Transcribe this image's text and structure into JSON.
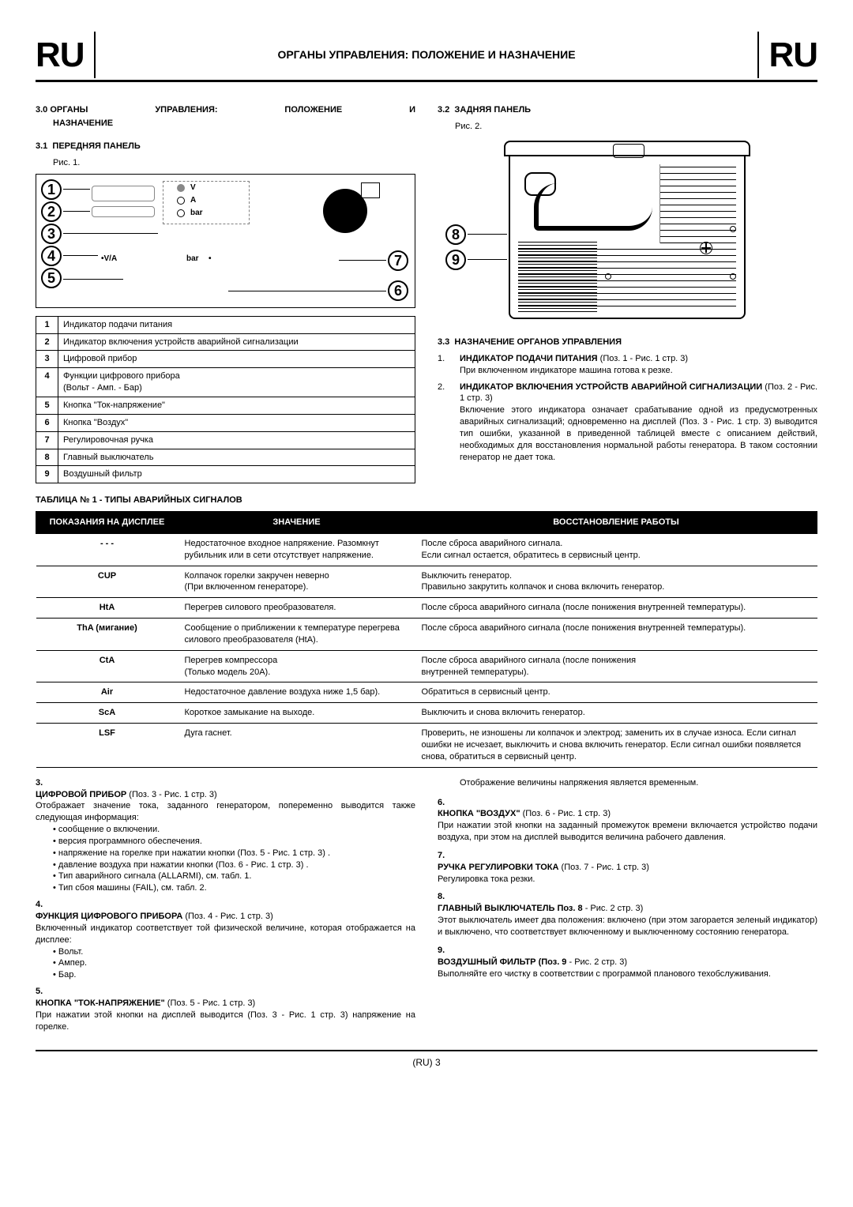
{
  "header": {
    "lang_left": "RU",
    "lang_right": "RU",
    "title": "ОРГАНЫ УПРАВЛЕНИЯ: ПОЛОЖЕНИЕ И НАЗНАЧЕНИЕ"
  },
  "sec30": {
    "num": "3.0",
    "title": "ОРГАНЫ УПРАВЛЕНИЯ: ПОЛОЖЕНИЕ И НАЗНАЧЕНИЕ"
  },
  "sec31": {
    "num": "3.1",
    "title": "ПЕРЕДНЯЯ ПАНЕЛЬ",
    "fig": "Рис. 1."
  },
  "sec32": {
    "num": "3.2",
    "title": "ЗАДНЯЯ ПАНЕЛЬ",
    "fig": "Рис. 2."
  },
  "sec33": {
    "num": "3.3",
    "title": "НАЗНАЧЕНИЕ ОРГАНОВ УПРАВЛЕНИЯ"
  },
  "front_callouts": [
    "1",
    "2",
    "3",
    "4",
    "5",
    "6",
    "7",
    "8",
    "9"
  ],
  "front_labels": {
    "v": "V",
    "a": "A",
    "bar": "bar",
    "va": "V/A",
    "bar2": "bar"
  },
  "defs": [
    {
      "n": "1",
      "t": "Индикатор подачи питания"
    },
    {
      "n": "2",
      "t": "Индикатор включения устройств аварийной сигнализации"
    },
    {
      "n": "3",
      "t": "Цифровой прибор"
    },
    {
      "n": "4",
      "t": "Функции цифрового прибора\n(Вольт - Амп. - Бар)"
    },
    {
      "n": "5",
      "t": "Кнопка \"Ток-напряжение\""
    },
    {
      "n": "6",
      "t": "Кнопка \"Воздух\""
    },
    {
      "n": "7",
      "t": "Регулировочная ручка"
    },
    {
      "n": "8",
      "t": "Главный выключатель"
    },
    {
      "n": "9",
      "t": "Воздушный фильтр"
    }
  ],
  "list33": [
    {
      "n": "1.",
      "b": "ИНДИКАТОР ПОДАЧИ ПИТАНИЯ",
      "ref": "(Поз. 1 - Рис. 1 стр. 3)",
      "body": "При включенном индикаторе машина готова к резке."
    },
    {
      "n": "2.",
      "b": "ИНДИКАТОР ВКЛЮЧЕНИЯ УСТРОЙСТВ АВАРИЙНОЙ СИГНАЛИЗАЦИИ",
      "ref": "(Поз. 2 - Рис. 1 стр. 3)",
      "body": "Включение этого индикатора означает срабатывание одной из предусмотренных аварийных сигнализаций; одновременно на дисплей (Поз. 3 - Рис. 1 стр. 3) выводится тип ошибки, указанной в приведенной таблицей вместе с описанием действий, необходимых для восстановления нормальной работы генератора. В таком состоянии генератор не дает тока."
    }
  ],
  "alarm_title": "ТАБЛИЦА № 1 - ТИПЫ АВАРИЙНЫХ СИГНАЛОВ",
  "alarm_headers": [
    "ПОКАЗАНИЯ НА ДИСПЛЕЕ",
    "ЗНАЧЕНИЕ",
    "ВОССТАНОВЛЕНИЕ РАБОТЫ"
  ],
  "alarm_rows": [
    {
      "c1": "- - -",
      "c2": "Недостаточное входное напряжение. Разомкнут рубильник или в сети отсутствует напряжение.",
      "c3": "После сброса аварийного сигнала.\nЕсли сигнал остается, обратитесь в сервисный центр."
    },
    {
      "c1": "CUP",
      "c2": "Колпачок горелки закручен неверно\n(При включенном генераторе).",
      "c3": "Выключить генератор.\nПравильно закрутить колпачок и снова включить генератор."
    },
    {
      "c1": "HtA",
      "c2": "Перегрев силового преобразователя.",
      "c3": "После сброса аварийного сигнала (после понижения внутренней температуры)."
    },
    {
      "c1": "ThA (мигание)",
      "c2": "Сообщение о приближении к температуре перегрева силового преобразователя (HtA).",
      "c3": "После сброса аварийного сигнала (после понижения внутренней температуры)."
    },
    {
      "c1": "CtA",
      "c2": "Перегрев компрессора\n(Только модель 20А).",
      "c3": "После сброса аварийного сигнала (после понижения\nвнутренней температуры)."
    },
    {
      "c1": "Air",
      "c2": "Недостаточное давление воздуха ниже 1,5 бар).",
      "c3": "Обратиться в сервисный центр."
    },
    {
      "c1": "ScA",
      "c2": "Короткое замыкание на выходе.",
      "c3": "Выключить и снова включить генератор."
    },
    {
      "c1": "LSF",
      "c2": "Дуга гаснет.",
      "c3": "Проверить, не изношены ли колпачок и электрод; заменить их в случае износа. Если сигнал ошибки не исчезает, выключить и снова включить генератор. Если сигнал ошибки появляется снова, обратиться в сервисный центр."
    }
  ],
  "lower_left": {
    "i3": {
      "n": "3.",
      "b": "ЦИФРОВОЙ ПРИБОР",
      "ref": "(Поз. 3 - Рис. 1 стр. 3)",
      "body": "Отображает значение тока, заданного генератором, попеременно выводится также следующая информация:",
      "bul": [
        "сообщение о включении.",
        "версия программного обеспечения.",
        "напряжение на горелке при нажатии кнопки (Поз. 5 - Рис. 1 стр. 3) .",
        "давление воздуха при нажатии кнопки (Поз. 6 - Рис. 1 стр. 3) .",
        "Тип аварийного сигнала (ALLARMI), см. табл. 1.",
        "Тип сбоя машины (FAIL), см. табл. 2."
      ]
    },
    "i4": {
      "n": "4.",
      "b": "ФУНКЦИЯ ЦИФРОВОГО ПРИБОРА",
      "ref": "(Поз. 4 - Рис. 1 стр. 3)",
      "body": "Включенный индикатор соответствует той физической величине, которая отображается на дисплее:",
      "bul": [
        "Вольт.",
        "Ампер.",
        "Бар."
      ]
    },
    "i5": {
      "n": "5.",
      "b": "КНОПКА \"ТОК-НАПРЯЖЕНИЕ\"",
      "ref": "(Поз. 5 - Рис. 1 стр. 3)",
      "body": "При нажатии этой кнопки на дисплей выводится (Поз. 3 - Рис. 1 стр. 3) напряжение на горелке."
    }
  },
  "lower_right": {
    "pre": "Отображение величины напряжения является временным.",
    "i6": {
      "n": "6.",
      "b": "КНОПКА \"ВОЗДУХ\"",
      "ref": "(Поз. 6 - Рис. 1 стр. 3)",
      "body": "При нажатии этой кнопки на заданный промежуток времени включается устройство подачи воздуха, при этом на дисплей выводится величина рабочего давления."
    },
    "i7": {
      "n": "7.",
      "b": "РУЧКА РЕГУЛИРОВКИ ТОКА",
      "ref": "(Поз. 7 - Рис. 1 стр. 3)",
      "body": "Регулировка тока резки."
    },
    "i8": {
      "n": "8.",
      "b": "ГЛАВНЫЙ ВЫКЛЮЧАТЕЛЬ Поз. 8",
      "ref": "- Рис. 2 стр. 3)",
      "body": "Этот выключатель имеет два положения: включено (при этом загорается зеленый индикатор) и выключено, что соответствует включенному и выключенному состоянию генератора."
    },
    "i9": {
      "n": "9.",
      "b": "ВОЗДУШНЫЙ ФИЛЬТР (Поз. 9",
      "ref": "- Рис. 2 стр. 3)",
      "body": "Выполняйте его чистку в соответствии с программой планового техобслуживания."
    }
  },
  "footer": "(RU) 3"
}
